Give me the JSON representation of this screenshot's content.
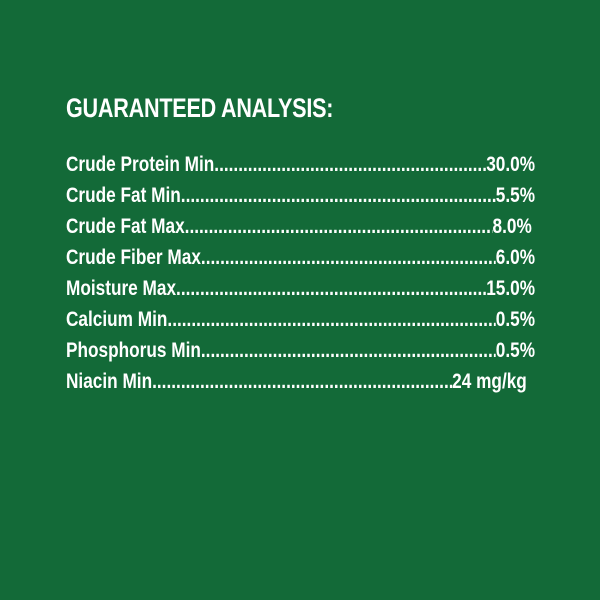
{
  "title": "GUARANTEED ANALYSIS:",
  "background_color": "#136a38",
  "items": [
    {
      "label": "Crude Protein Min",
      "value": "30.0%"
    },
    {
      "label": "Crude Fat Min",
      "value": "5.5%"
    },
    {
      "label": "Crude Fat Max",
      "value": "8.0%"
    },
    {
      "label": "Crude Fiber Max",
      "value": "6.0%"
    },
    {
      "label": "Moisture Max",
      "value": "15.0%"
    },
    {
      "label": "Calcium Min",
      "value": "0.5%"
    },
    {
      "label": "Phosphorus Min",
      "value": "0.5%"
    },
    {
      "label": "Niacin Min",
      "value": "24 mg/kg"
    }
  ]
}
